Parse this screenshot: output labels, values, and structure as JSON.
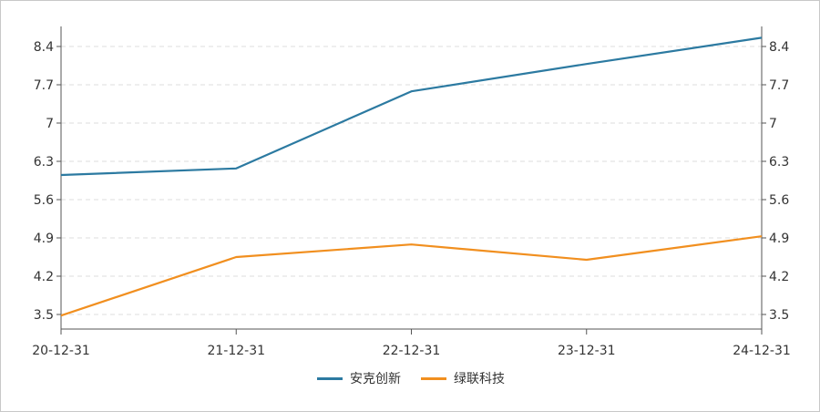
{
  "chart_data": {
    "type": "line",
    "categories": [
      "20-12-31",
      "21-12-31",
      "22-12-31",
      "23-12-31",
      "24-12-31"
    ],
    "series": [
      {
        "name": "安克创新",
        "color": "#2c7aa1",
        "values": [
          6.05,
          6.17,
          7.58,
          8.08,
          8.56
        ]
      },
      {
        "name": "绿联科技",
        "color": "#f18f1f",
        "values": [
          3.48,
          4.55,
          4.78,
          4.5,
          4.93
        ]
      }
    ],
    "y_ticks": [
      "3.5",
      "4.2",
      "4.9",
      "5.6",
      "6.3",
      "7",
      "7.7",
      "8.4"
    ],
    "ylim": [
      3.5,
      8.4
    ],
    "grid": true,
    "legend_position": "bottom-center"
  }
}
